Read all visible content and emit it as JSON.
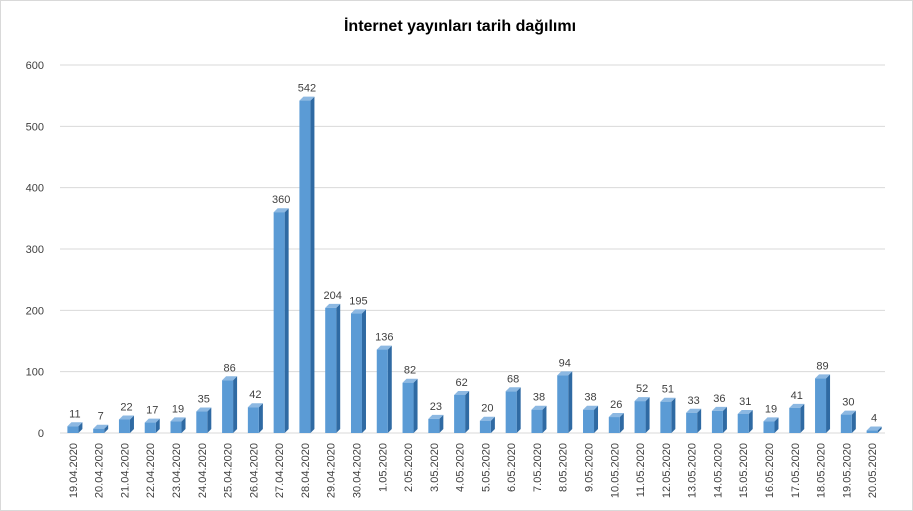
{
  "chart_data": {
    "type": "bar",
    "title": "İnternet yayınları tarih dağılımı",
    "categories": [
      "19.04.2020",
      "20.04.2020",
      "21.04.2020",
      "22.04.2020",
      "23.04.2020",
      "24.04.2020",
      "25.04.2020",
      "26.04.2020",
      "27.04.2020",
      "28.04.2020",
      "29.04.2020",
      "30.04.2020",
      "1.05.2020",
      "2.05.2020",
      "3.05.2020",
      "4.05.2020",
      "5.05.2020",
      "6.05.2020",
      "7.05.2020",
      "8.05.2020",
      "9.05.2020",
      "10.05.2020",
      "11.05.2020",
      "12.05.2020",
      "13.05.2020",
      "14.05.2020",
      "15.05.2020",
      "16.05.2020",
      "17.05.2020",
      "18.05.2020",
      "19.05.2020",
      "20.05.2020"
    ],
    "values": [
      11,
      7,
      22,
      17,
      19,
      35,
      86,
      42,
      360,
      542,
      204,
      195,
      136,
      82,
      23,
      62,
      20,
      68,
      38,
      94,
      38,
      26,
      52,
      51,
      33,
      36,
      31,
      19,
      41,
      89,
      30,
      4
    ],
    "color": "#5b9bd5",
    "ylim": [
      0,
      600
    ],
    "yticks": [
      0,
      100,
      200,
      300,
      400,
      500,
      600
    ],
    "grid": true
  }
}
